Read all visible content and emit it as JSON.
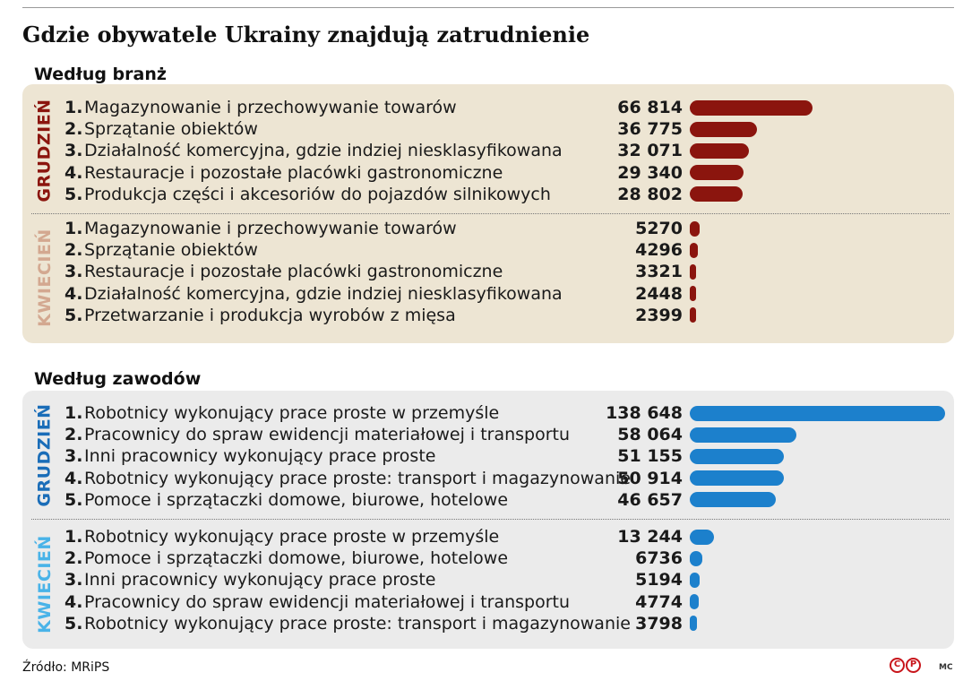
{
  "title": "Gdzie obywatele Ukrainy znajdują zatrudnienie",
  "source": "Źródło: MRiPS",
  "credit": "MC",
  "logo_text": [
    "C",
    "P"
  ],
  "colors": {
    "industry_bar": "#8b150e",
    "occupation_bar": "#1c80cc",
    "grudzien_industry": "#8b150e",
    "kwiecien_industry": "#d3a890",
    "grudzien_occupation": "#1a6db8",
    "kwiecien_occupation": "#49b3e8"
  },
  "chart_data": [
    {
      "type": "bar",
      "orientation": "horizontal",
      "title": "Według branż",
      "groups": [
        {
          "name": "GRUDZIEŃ",
          "ranks": [
            "1.",
            "2.",
            "3.",
            "4.",
            "5."
          ],
          "categories": [
            "Magazynowanie i przechowywanie towarów",
            "Sprzątanie obiektów",
            "Działalność komercyjna, gdzie indziej niesklasyfikowana",
            "Restauracje i pozostałe placówki gastronomiczne",
            "Produkcja części i akcesoriów do pojazdów silnikowych"
          ],
          "values": [
            66814,
            36775,
            32071,
            29340,
            28802
          ],
          "labels": [
            "66 814",
            "36 775",
            "32 071",
            "29 340",
            "28 802"
          ]
        },
        {
          "name": "KWIECIEŃ",
          "ranks": [
            "1.",
            "2.",
            "3.",
            "4.",
            "5."
          ],
          "categories": [
            "Magazynowanie i przechowywanie towarów",
            "Sprzątanie obiektów",
            "Restauracje i pozostałe placówki gastronomiczne",
            "Działalność komercyjna, gdzie indziej niesklasyfikowana",
            "Przetwarzanie i produkcja wyrobów z mięsa"
          ],
          "values": [
            5270,
            4296,
            3321,
            2448,
            2399
          ],
          "labels": [
            "5270",
            "4296",
            "3321",
            "2448",
            "2399"
          ]
        }
      ]
    },
    {
      "type": "bar",
      "orientation": "horizontal",
      "title": "Według zawodów",
      "groups": [
        {
          "name": "GRUDZIEŃ",
          "ranks": [
            "1.",
            "2.",
            "3.",
            "4.",
            "5."
          ],
          "categories": [
            "Robotnicy wykonujący prace proste w przemyśle",
            "Pracownicy do spraw ewidencji materiałowej i transportu",
            "Inni pracownicy wykonujący prace proste",
            "Robotnicy wykonujący prace proste: transport i magazynowanie",
            "Pomoce i sprzątaczki domowe, biurowe, hotelowe"
          ],
          "values": [
            138648,
            58064,
            51155,
            50914,
            46657
          ],
          "labels": [
            "138 648",
            "58 064",
            "51 155",
            "50 914",
            "46 657"
          ]
        },
        {
          "name": "KWIECIEŃ",
          "ranks": [
            "1.",
            "2.",
            "3.",
            "4.",
            "5."
          ],
          "categories": [
            "Robotnicy wykonujący prace proste w przemyśle",
            "Pomoce i sprzątaczki domowe, biurowe, hotelowe",
            "Inni pracownicy wykonujący prace proste",
            "Pracownicy do spraw ewidencji materiałowej i transportu",
            "Robotnicy wykonujący prace proste: transport i magazynowanie"
          ],
          "values": [
            13244,
            6736,
            5194,
            4774,
            3798
          ],
          "labels": [
            "13 244",
            "6736",
            "5194",
            "4774",
            "3798"
          ]
        }
      ]
    }
  ]
}
